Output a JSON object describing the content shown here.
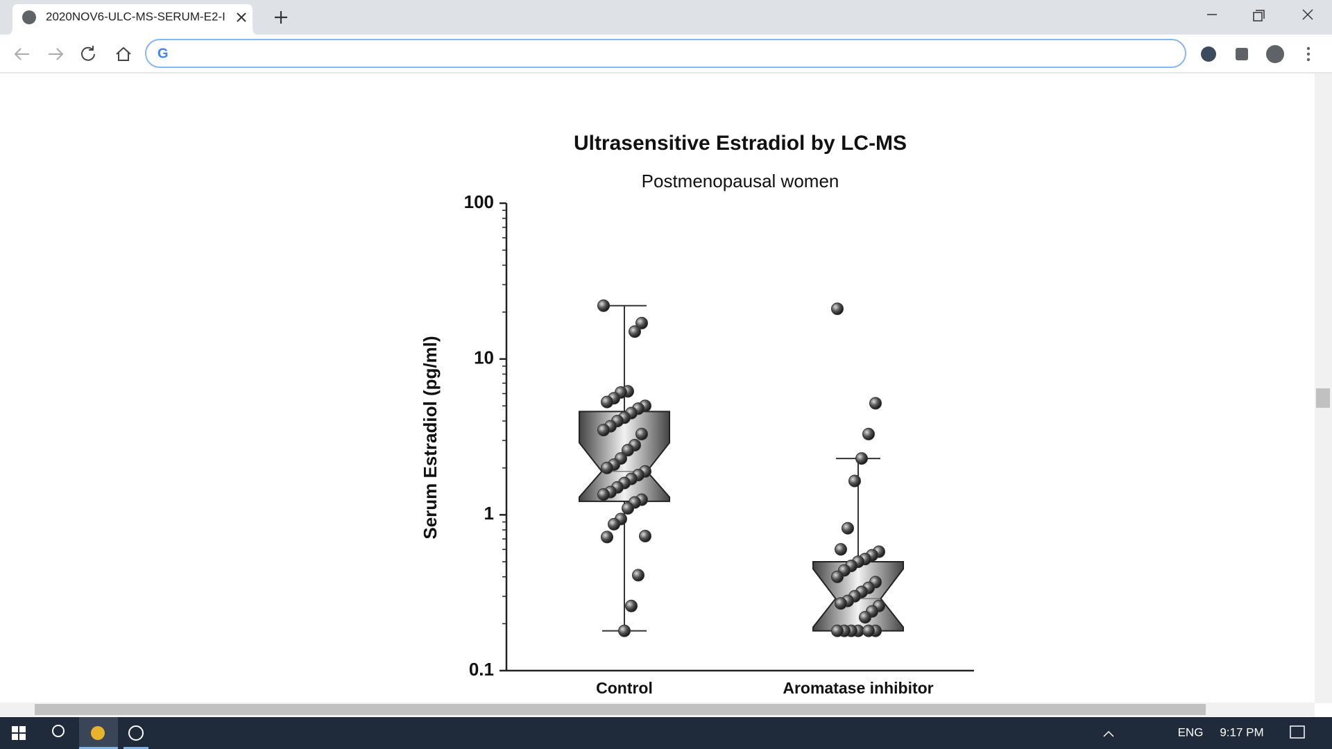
{
  "browser": {
    "tab_title": "2020NOV6-ULC-MS-SERUM-E2-I"
  },
  "taskbar": {
    "language": "ENG",
    "time": "9:17 PM"
  },
  "chart_data": {
    "type": "box",
    "title": "Ultrasensitive Estradiol by LC-MS",
    "subtitle": "Postmenopausal women",
    "y_label": "Serum Estradiol (pg/ml)",
    "categories": [
      "Control",
      "Aromatase inhibitor"
    ],
    "whisker_low": [
      0.18,
      0.18
    ],
    "q1": [
      1.22,
      0.18
    ],
    "notch_low": [
      1.3,
      0.19
    ],
    "median": [
      1.9,
      0.29
    ],
    "notch_high": [
      2.9,
      0.45
    ],
    "q3": [
      4.6,
      0.5
    ],
    "whisker_high": [
      22,
      2.3
    ],
    "points": [
      [
        22,
        17,
        15,
        6.2,
        6.1,
        5.6,
        5.3,
        5.0,
        4.8,
        4.5,
        4.2,
        4.0,
        3.7,
        3.5,
        3.3,
        2.8,
        2.6,
        2.3,
        2.1,
        2.0,
        1.9,
        1.8,
        1.7,
        1.6,
        1.5,
        1.4,
        1.35,
        1.25,
        1.2,
        1.1,
        0.94,
        0.87,
        0.72,
        0.73,
        0.41,
        0.26,
        0.18
      ],
      [
        21,
        5.2,
        3.3,
        2.3,
        1.65,
        0.82,
        0.6,
        0.58,
        0.55,
        0.52,
        0.5,
        0.47,
        0.44,
        0.4,
        0.37,
        0.34,
        0.32,
        0.3,
        0.28,
        0.27,
        0.26,
        0.24,
        0.22,
        0.18,
        0.18,
        0.18,
        0.18,
        0.18,
        0.18
      ]
    ],
    "log_y": true,
    "ylim": [
      0.1,
      100
    ],
    "yticks": [
      0.1,
      1,
      10,
      100
    ],
    "color": "#555555",
    "point_color": "#333333"
  }
}
